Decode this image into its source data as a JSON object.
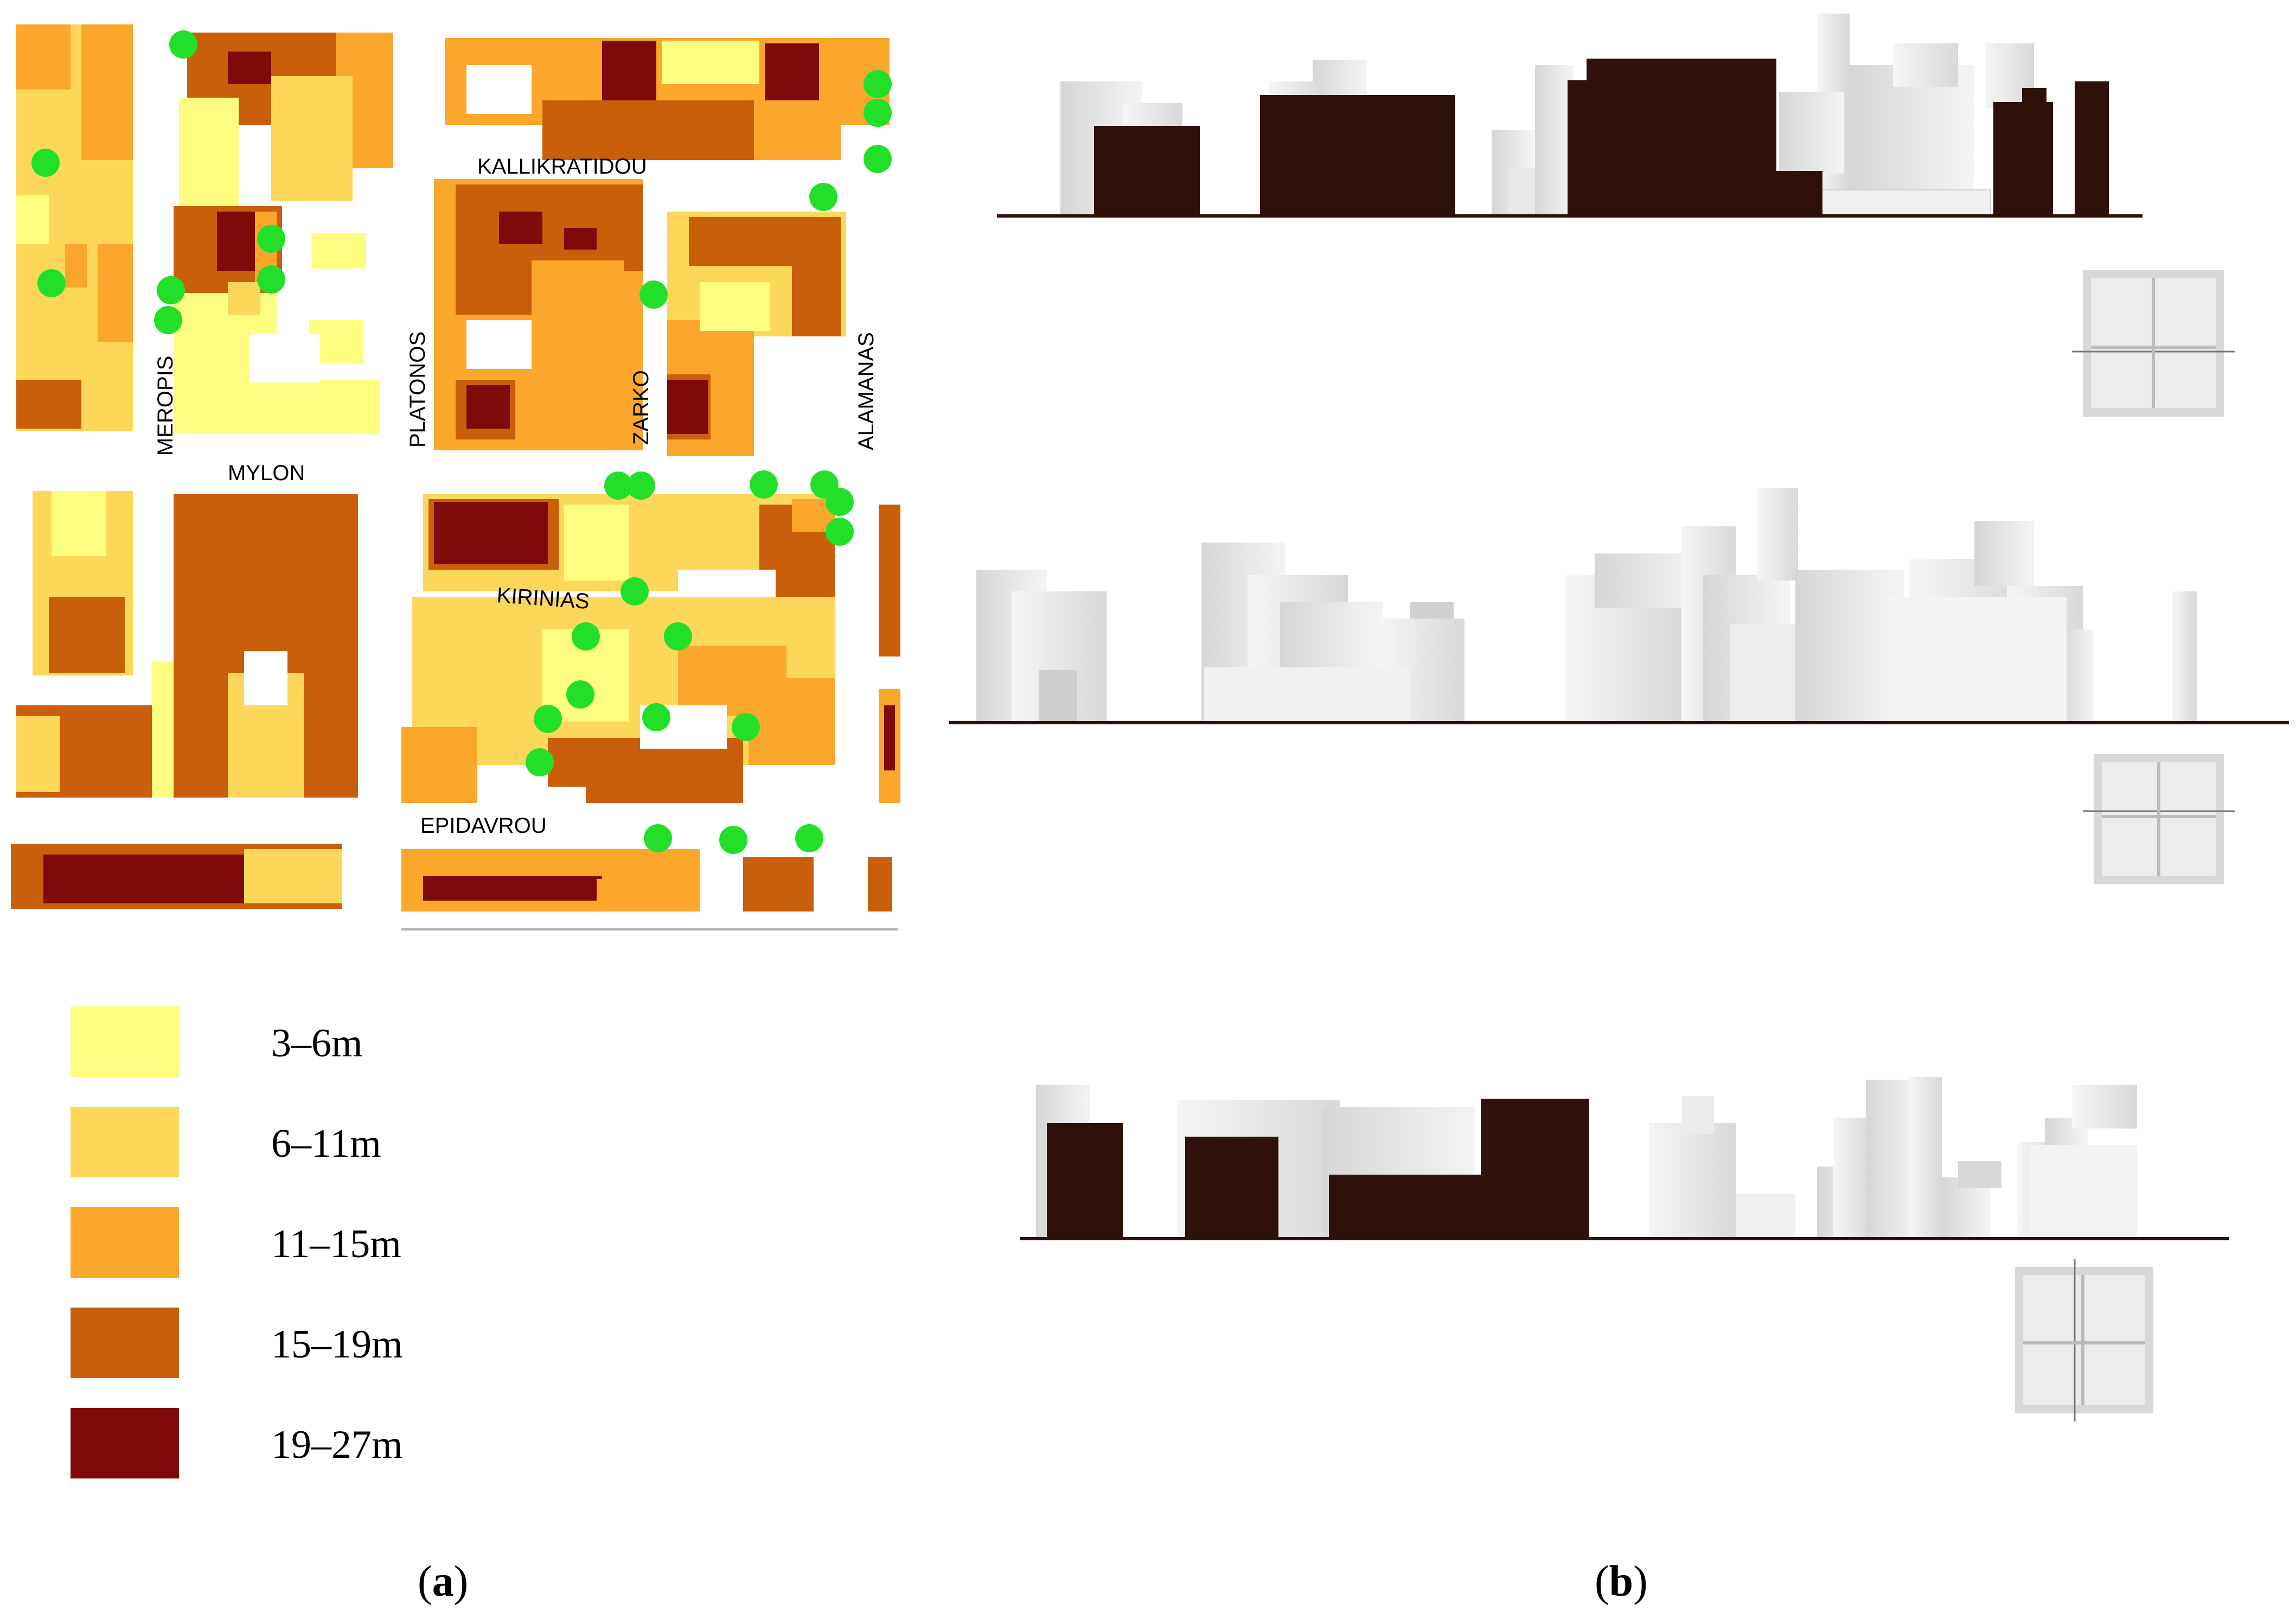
{
  "map": {
    "streets": [
      "KALLIKRATIDOU",
      "MEROPIS",
      "PLATONOS",
      "ZARKO",
      "ALAMANAS",
      "MYLON",
      "KIRINIAS",
      "EPIDAVROU"
    ],
    "tree_color": "#22e02a"
  },
  "legend": {
    "items": [
      {
        "label": "3–6m",
        "color": "#fdfd80"
      },
      {
        "label": "6–11m",
        "color": "#fdd75a"
      },
      {
        "label": "11–15m",
        "color": "#fba72c"
      },
      {
        "label": "15–19m",
        "color": "#c95f0a"
      },
      {
        "label": "19–27m",
        "color": "#7e0a0a"
      }
    ]
  },
  "captions": {
    "a": {
      "open": "(",
      "letter": "a",
      "close": ")"
    },
    "b": {
      "open": "(",
      "letter": "b",
      "close": ")"
    }
  },
  "sections": {
    "dark_color": "#2e110b",
    "ground_color": "#2b1108"
  }
}
